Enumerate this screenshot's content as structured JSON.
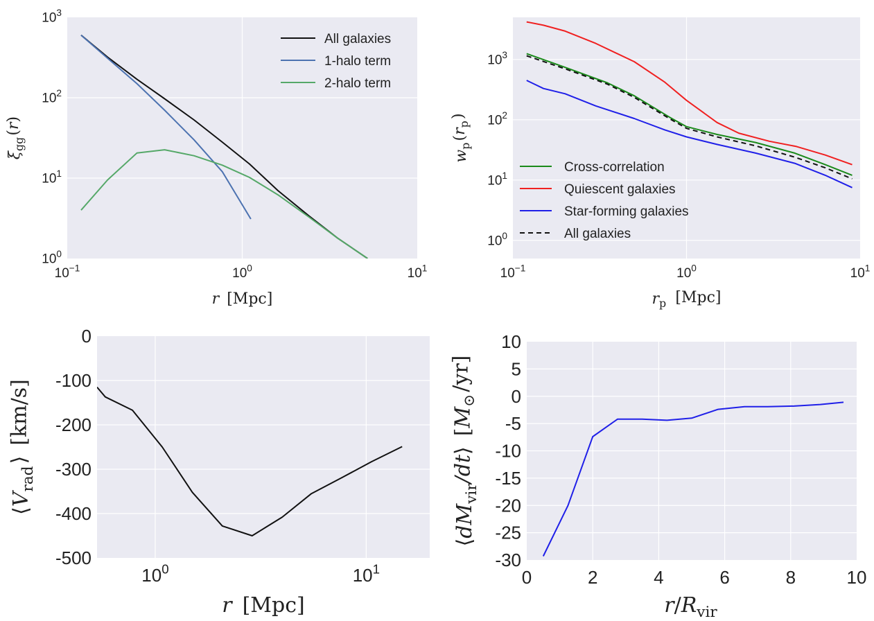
{
  "chart_data": [
    {
      "type": "line",
      "panel": "top-left",
      "xscale": "log",
      "yscale": "log",
      "xlim": [
        0.1,
        10
      ],
      "ylim": [
        1,
        1000
      ],
      "xlabel": "r  [Mpc]",
      "ylabel": "ξgg(r)",
      "xticks": [
        {
          "v": 0.1,
          "b": "10",
          "e": "−1"
        },
        {
          "v": 1,
          "b": "10",
          "e": "0"
        },
        {
          "v": 10,
          "b": "10",
          "e": "1"
        }
      ],
      "yticks": [
        {
          "v": 1,
          "b": "10",
          "e": "0"
        },
        {
          "v": 10,
          "b": "10",
          "e": "1"
        },
        {
          "v": 100,
          "b": "10",
          "e": "2"
        },
        {
          "v": 1000,
          "b": "10",
          "e": "3"
        }
      ],
      "grid": true,
      "legend": "top-right",
      "series": [
        {
          "name": "All galaxies",
          "color": "#111111",
          "dash": "",
          "x": [
            0.12,
            0.17,
            0.25,
            0.36,
            0.53,
            0.77,
            1.1,
            1.6,
            2.4,
            3.5,
            5.2
          ],
          "y": [
            600,
            320,
            170,
            97,
            53,
            28,
            15,
            7,
            3.4,
            1.8,
            1.0
          ]
        },
        {
          "name": "1-halo term",
          "color": "#4c72b0",
          "dash": "",
          "x": [
            0.12,
            0.17,
            0.25,
            0.36,
            0.53,
            0.77,
            1.12
          ],
          "y": [
            600,
            310,
            150,
            70,
            30,
            12,
            3.1
          ]
        },
        {
          "name": "2-halo term",
          "color": "#55a868",
          "dash": "",
          "x": [
            0.12,
            0.17,
            0.25,
            0.36,
            0.53,
            0.77,
            1.1,
            1.6,
            2.4,
            3.5,
            5.2
          ],
          "y": [
            4,
            9.5,
            20.5,
            22.5,
            19,
            14.5,
            10.2,
            6.2,
            3.3,
            1.8,
            1.0
          ]
        }
      ]
    },
    {
      "type": "line",
      "panel": "top-right",
      "xscale": "log",
      "yscale": "log",
      "xlim": [
        0.1,
        10
      ],
      "ylim": [
        0.5,
        5000
      ],
      "xlabel": "rp  [Mpc]",
      "ylabel": "wp(rp)",
      "xticks": [
        {
          "v": 0.1,
          "b": "10",
          "e": "−1"
        },
        {
          "v": 1,
          "b": "10",
          "e": "0"
        },
        {
          "v": 10,
          "b": "10",
          "e": "1"
        }
      ],
      "yticks": [
        {
          "v": 1,
          "b": "10",
          "e": "0"
        },
        {
          "v": 10,
          "b": "10",
          "e": "1"
        },
        {
          "v": 100,
          "b": "10",
          "e": "2"
        },
        {
          "v": 1000,
          "b": "10",
          "e": "3"
        }
      ],
      "grid": true,
      "legend": "lower-left",
      "series": [
        {
          "name": "Cross-correlation",
          "color": "#1a8a1a",
          "dash": "",
          "x": [
            0.12,
            0.2,
            0.35,
            0.5,
            0.8,
            1.0,
            1.5,
            2.5,
            4.2,
            6.3,
            9
          ],
          "y": [
            1250,
            740,
            410,
            250,
            110,
            77,
            57,
            42,
            28,
            18,
            12
          ]
        },
        {
          "name": "Quiescent galaxies",
          "color": "#f02020",
          "dash": "",
          "x": [
            0.12,
            0.15,
            0.2,
            0.3,
            0.5,
            0.75,
            1.0,
            1.5,
            2.0,
            3.0,
            4.3,
            6.3,
            9
          ],
          "y": [
            4200,
            3700,
            2950,
            1850,
            920,
            420,
            210,
            90,
            60,
            44,
            36,
            26,
            18
          ]
        },
        {
          "name": "Star-forming galaxies",
          "color": "#1f1fe8",
          "dash": "",
          "x": [
            0.12,
            0.15,
            0.2,
            0.3,
            0.5,
            0.75,
            1.0,
            1.5,
            2.5,
            4.2,
            6.3,
            9
          ],
          "y": [
            450,
            330,
            270,
            170,
            105,
            68,
            52,
            39,
            28,
            19,
            12,
            7.5
          ]
        },
        {
          "name": "All galaxies",
          "color": "#111111",
          "dash": "7,5",
          "x": [
            0.12,
            0.2,
            0.35,
            0.5,
            0.8,
            1.0,
            1.5,
            2.5,
            4.2,
            6.3,
            9
          ],
          "y": [
            1150,
            700,
            390,
            235,
            104,
            72,
            52,
            37,
            24,
            16,
            10.5
          ]
        }
      ]
    },
    {
      "type": "line",
      "panel": "bottom-left",
      "xscale": "log",
      "yscale": "linear",
      "xlim": [
        0.53,
        20
      ],
      "ylim": [
        -500,
        0
      ],
      "xlabel": "r  [Mpc]",
      "ylabel": "⟨Vrad⟩  [km/s]",
      "xticks": [
        {
          "v": 1,
          "b": "10",
          "e": "0"
        },
        {
          "v": 10,
          "b": "10",
          "e": "1"
        }
      ],
      "yticks": [
        {
          "v": 0,
          "t": "0"
        },
        {
          "v": -100,
          "t": "-100"
        },
        {
          "v": -200,
          "t": "-200"
        },
        {
          "v": -300,
          "t": "-300"
        },
        {
          "v": -400,
          "t": "-400"
        },
        {
          "v": -500,
          "t": "-500"
        }
      ],
      "grid": true,
      "series": [
        {
          "color": "#111111",
          "dash": "",
          "x": [
            0.53,
            0.58,
            0.78,
            1.08,
            1.5,
            2.08,
            2.88,
            4.0,
            5.5,
            7.6,
            10.6,
            14.8
          ],
          "y": [
            -115,
            -137,
            -167,
            -250,
            -352,
            -428,
            -450,
            -408,
            -355,
            -320,
            -283,
            -249
          ]
        }
      ]
    },
    {
      "type": "line",
      "panel": "bottom-right",
      "xscale": "linear",
      "yscale": "linear",
      "xlim": [
        0,
        10
      ],
      "ylim": [
        -30,
        10
      ],
      "xlabel": "r/Rvir",
      "ylabel": "⟨dMvir/dt⟩  [M⊙/yr]",
      "xticks": [
        {
          "v": 0,
          "t": "0"
        },
        {
          "v": 2,
          "t": "2"
        },
        {
          "v": 4,
          "t": "4"
        },
        {
          "v": 6,
          "t": "6"
        },
        {
          "v": 8,
          "t": "8"
        },
        {
          "v": 10,
          "t": "10"
        }
      ],
      "yticks": [
        {
          "v": 10,
          "t": "10"
        },
        {
          "v": 5,
          "t": "5"
        },
        {
          "v": 0,
          "t": "0"
        },
        {
          "v": -5,
          "t": "-5"
        },
        {
          "v": -10,
          "t": "-10"
        },
        {
          "v": -15,
          "t": "-15"
        },
        {
          "v": -20,
          "t": "-20"
        },
        {
          "v": -25,
          "t": "-25"
        },
        {
          "v": -30,
          "t": "-30"
        }
      ],
      "grid": true,
      "series": [
        {
          "color": "#1f1fe8",
          "dash": "",
          "x": [
            0.5,
            1.25,
            2.0,
            2.75,
            3.5,
            4.25,
            5.0,
            5.8,
            6.6,
            7.3,
            8.1,
            8.9,
            9.6
          ],
          "y": [
            -29.3,
            -20,
            -7.4,
            -4.2,
            -4.2,
            -4.4,
            -4.0,
            -2.4,
            -1.9,
            -1.9,
            -1.8,
            -1.5,
            -1.1
          ]
        }
      ]
    }
  ]
}
